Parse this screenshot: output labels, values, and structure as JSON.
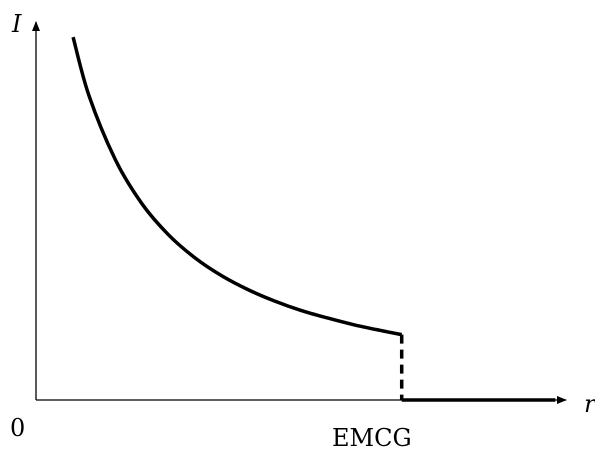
{
  "chart_data": {
    "type": "line",
    "title": "",
    "xlabel": "r",
    "ylabel": "I",
    "origin_label": "0",
    "annotations": [
      "EMCG"
    ],
    "grid": false,
    "legend": "none",
    "line_color": "#000000",
    "series": [
      {
        "kind": "curve",
        "style": "solid",
        "x": [
          0.07,
          0.1,
          0.15,
          0.2,
          0.25,
          0.3,
          0.35,
          0.4,
          0.45,
          0.5,
          0.55,
          0.6,
          0.65,
          0.69
        ],
        "y": [
          0.96,
          0.805,
          0.635,
          0.519,
          0.437,
          0.376,
          0.329,
          0.292,
          0.262,
          0.237,
          0.217,
          0.199,
          0.184,
          0.173
        ]
      },
      {
        "kind": "drop",
        "style": "dashed",
        "x": [
          0.69,
          0.69
        ],
        "y": [
          0.173,
          0.0
        ]
      },
      {
        "kind": "tail",
        "style": "solid",
        "x": [
          0.69,
          0.98
        ],
        "y": [
          0.0,
          0.0
        ]
      }
    ],
    "xlim": [
      0,
      1
    ],
    "ylim": [
      0,
      1
    ]
  }
}
